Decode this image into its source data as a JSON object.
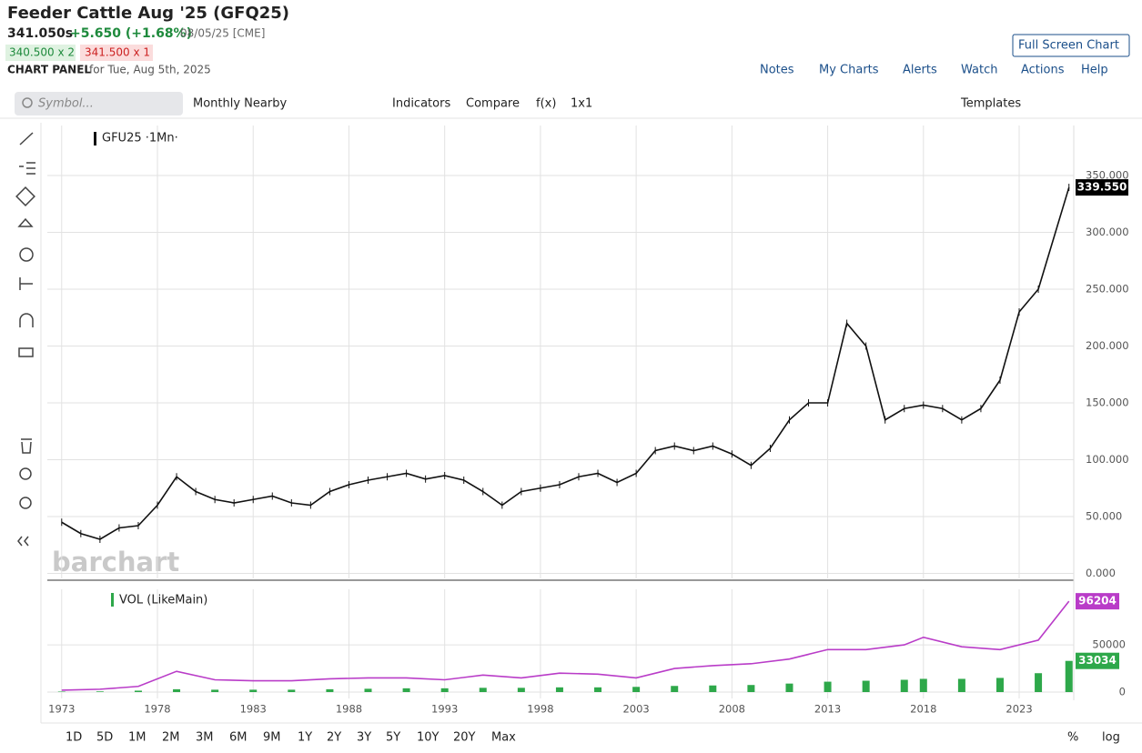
{
  "header": {
    "title": "Feeder Cattle Aug '25 (GFQ25)",
    "last": "341.050s",
    "change": "+5.650 (+1.68%)",
    "date": "08/05/25 [CME]",
    "bid": "340.500 x 2",
    "ask": "341.500 x 1",
    "panel_label": "CHART PANEL",
    "panel_date": "for Tue, Aug 5th, 2025"
  },
  "full_screen": "Full Screen Chart",
  "top_links": [
    "Notes",
    "My Charts",
    "Alerts",
    "Watch",
    "Actions",
    "Help"
  ],
  "toolbar": {
    "symbol_placeholder": "Symbol...",
    "items": [
      "Monthly Nearby",
      "Indicators",
      "Compare",
      "f(x)",
      "1x1"
    ],
    "templates": "Templates"
  },
  "periods": [
    "1D",
    "5D",
    "1M",
    "2M",
    "3M",
    "6M",
    "9M",
    "1Y",
    "2Y",
    "3Y",
    "5Y",
    "10Y",
    "20Y",
    "Max"
  ],
  "scale_options": [
    "%",
    "log"
  ],
  "watermark": "barchart",
  "chart_data": [
    {
      "type": "line",
      "legend": "GFU25 ·1Mn·",
      "x": [
        1973,
        1974,
        1975,
        1976,
        1977,
        1978,
        1979,
        1980,
        1981,
        1982,
        1983,
        1984,
        1985,
        1986,
        1987,
        1988,
        1989,
        1990,
        1991,
        1992,
        1993,
        1994,
        1995,
        1996,
        1997,
        1998,
        1999,
        2000,
        2001,
        2002,
        2003,
        2004,
        2005,
        2006,
        2007,
        2008,
        2009,
        2010,
        2011,
        2012,
        2013,
        2014,
        2015,
        2016,
        2017,
        2018,
        2019,
        2020,
        2021,
        2022,
        2023,
        2024,
        2025.6
      ],
      "series": [
        {
          "name": "GFU25 ·1Mn·",
          "color": "#111111",
          "values": [
            45,
            35,
            30,
            40,
            42,
            60,
            85,
            72,
            65,
            62,
            65,
            68,
            62,
            60,
            72,
            78,
            82,
            85,
            88,
            83,
            86,
            82,
            72,
            60,
            72,
            75,
            78,
            85,
            88,
            80,
            88,
            108,
            112,
            108,
            112,
            105,
            95,
            110,
            135,
            150,
            150,
            220,
            200,
            135,
            145,
            148,
            145,
            135,
            145,
            170,
            230,
            250,
            339.55
          ]
        }
      ],
      "last_label": {
        "value": 339.55,
        "label": "339.550"
      },
      "ylim": [
        -6,
        394
      ],
      "yticks": [
        {
          "value": 0,
          "label": "0.000"
        },
        {
          "value": 50,
          "label": "50.000"
        },
        {
          "value": 100,
          "label": "100.000"
        },
        {
          "value": 150,
          "label": "150.000"
        },
        {
          "value": 200,
          "label": "200.000"
        },
        {
          "value": 250,
          "label": "250.000"
        },
        {
          "value": 300,
          "label": "300.000"
        },
        {
          "value": 350,
          "label": "350.000"
        }
      ],
      "grid": true
    },
    {
      "type": "combo",
      "legend": "VOL (LikeMain)",
      "x": [
        1973,
        1975,
        1977,
        1979,
        1981,
        1983,
        1985,
        1987,
        1989,
        1991,
        1993,
        1995,
        1997,
        1999,
        2001,
        2003,
        2005,
        2007,
        2009,
        2011,
        2013,
        2015,
        2017,
        2018,
        2020,
        2022,
        2024,
        2025.6
      ],
      "series": [
        {
          "name": "VOL (LikeMain)",
          "color": "#2ea84a",
          "values": [
            500,
            700,
            1500,
            3000,
            2500,
            2500,
            2500,
            3000,
            3500,
            4000,
            4000,
            4500,
            4500,
            5000,
            5000,
            5500,
            6500,
            7000,
            7500,
            9000,
            11000,
            12000,
            13000,
            14000,
            14000,
            15000,
            20000,
            33034
          ]
        },
        {
          "color": "#b93cc8",
          "values": [
            2000,
            3000,
            6000,
            22000,
            13000,
            12000,
            12000,
            14000,
            15000,
            15000,
            13000,
            18000,
            15000,
            20000,
            19000,
            15000,
            25000,
            28000,
            30000,
            35000,
            45000,
            45000,
            50000,
            58000,
            48000,
            45000,
            55000,
            96204
          ]
        }
      ],
      "xlim": [
        1972.25,
        2025.85
      ],
      "xticks": [
        1973,
        1978,
        1983,
        1988,
        1993,
        1998,
        2003,
        2008,
        2013,
        2018,
        2023
      ],
      "ylim": [
        0,
        105000
      ],
      "yticks": [
        0,
        50000
      ],
      "grid": true
    }
  ]
}
